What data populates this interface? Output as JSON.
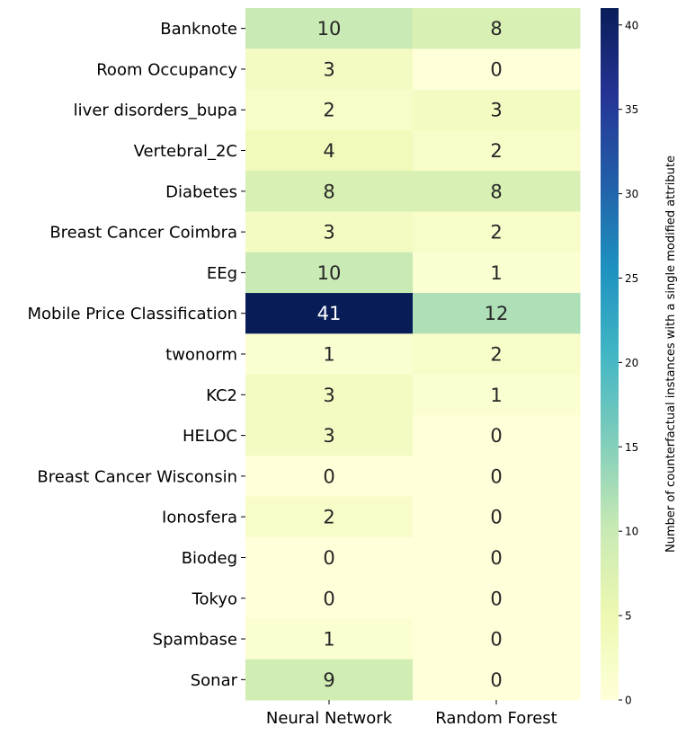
{
  "chart_data": {
    "type": "heatmap",
    "rows": [
      "Banknote",
      "Room Occupancy",
      "liver disorders_bupa",
      "Vertebral_2C",
      "Diabetes",
      "Breast Cancer Coimbra",
      "EEg",
      "Mobile Price Classification",
      "twonorm",
      "KC2",
      "HELOC",
      "Breast Cancer Wisconsin",
      "Ionosfera",
      "Biodeg",
      "Tokyo",
      "Spambase",
      "Sonar"
    ],
    "columns": [
      "Neural Network",
      "Random Forest"
    ],
    "values": [
      [
        10,
        8
      ],
      [
        3,
        0
      ],
      [
        2,
        3
      ],
      [
        4,
        2
      ],
      [
        8,
        8
      ],
      [
        3,
        2
      ],
      [
        10,
        1
      ],
      [
        41,
        12
      ],
      [
        1,
        2
      ],
      [
        3,
        1
      ],
      [
        3,
        0
      ],
      [
        0,
        0
      ],
      [
        2,
        0
      ],
      [
        0,
        0
      ],
      [
        0,
        0
      ],
      [
        1,
        0
      ],
      [
        9,
        0
      ]
    ],
    "colormap": "YlGnBu",
    "vmin": 0,
    "vmax": 41,
    "colorbar": {
      "label": "Number of counterfactual instances with a single modified attribute",
      "ticks": [
        0,
        5,
        10,
        15,
        20,
        25,
        30,
        35,
        40
      ]
    },
    "colormap_stops": [
      {
        "pos": 0.0,
        "color": "#ffffd9"
      },
      {
        "pos": 0.125,
        "color": "#edf8b1"
      },
      {
        "pos": 0.25,
        "color": "#c7e9b4"
      },
      {
        "pos": 0.375,
        "color": "#7fcdbb"
      },
      {
        "pos": 0.5,
        "color": "#41b6c4"
      },
      {
        "pos": 0.625,
        "color": "#1d91c0"
      },
      {
        "pos": 0.75,
        "color": "#225ea8"
      },
      {
        "pos": 0.875,
        "color": "#253494"
      },
      {
        "pos": 1.0,
        "color": "#081d58"
      }
    ]
  }
}
